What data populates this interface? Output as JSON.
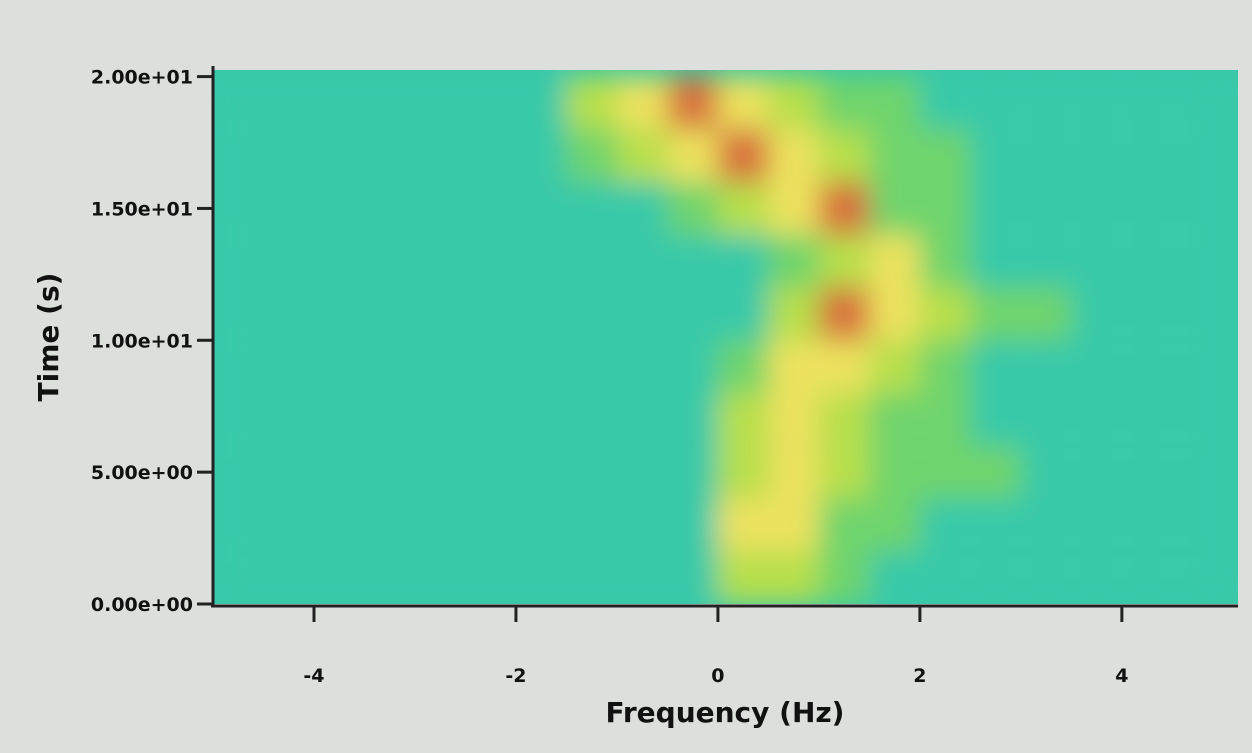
{
  "chart_data": {
    "type": "heatmap",
    "x_label": "Frequency (Hz)",
    "y_label": "Time (s)",
    "xlim": [
      -5,
      5.15
    ],
    "ylim": [
      0,
      20.25
    ],
    "xticks": [
      -4,
      -2,
      0,
      2,
      4
    ],
    "yticks": [
      {
        "value": 0,
        "label": "0.00e+00"
      },
      {
        "value": 5,
        "label": "5.00e+00"
      },
      {
        "value": 10,
        "label": "1.00e+01"
      },
      {
        "value": 15,
        "label": "1.50e+01"
      },
      {
        "value": 20,
        "label": "2.00e+01"
      }
    ],
    "xbins": [
      -5,
      -4.5,
      -4,
      -3.5,
      -3,
      -2.5,
      -2,
      -1.5,
      -1,
      -0.5,
      0,
      0.5,
      1,
      1.5,
      2,
      2.5,
      3,
      3.5,
      4,
      4.5,
      5
    ],
    "ybins": [
      0,
      2,
      4,
      6,
      8,
      10,
      12,
      14,
      16,
      18,
      20
    ],
    "colors": [
      "#38c9a9",
      "#6fd46c",
      "#b7df4c",
      "#ece25e",
      "#d8703e"
    ],
    "background": "#38c9a9",
    "z": [
      [
        0,
        0,
        0,
        0,
        0,
        0,
        0,
        0,
        0,
        0,
        2,
        2,
        1,
        0,
        0,
        0,
        0,
        0,
        0,
        0
      ],
      [
        0,
        0,
        0,
        0,
        0,
        0,
        0,
        0,
        0,
        0,
        3,
        3,
        1,
        1,
        0,
        0,
        0,
        0,
        0,
        0
      ],
      [
        0,
        0,
        0,
        0,
        0,
        0,
        0,
        0,
        0,
        0,
        2,
        3,
        2,
        1,
        1,
        1,
        0,
        0,
        0,
        0
      ],
      [
        0,
        0,
        0,
        0,
        0,
        0,
        0,
        0,
        0,
        0,
        2,
        3,
        2,
        1,
        1,
        0,
        0,
        0,
        0,
        0
      ],
      [
        0,
        0,
        0,
        0,
        0,
        0,
        0,
        0,
        0,
        0,
        1,
        3,
        3,
        2,
        1,
        0,
        0,
        0,
        0,
        0
      ],
      [
        0,
        0,
        0,
        0,
        0,
        0,
        0,
        0,
        0,
        0,
        0,
        2,
        4,
        3,
        2,
        1,
        1,
        0,
        0,
        0
      ],
      [
        0,
        0,
        0,
        0,
        0,
        0,
        0,
        0,
        0,
        0,
        0,
        1,
        2,
        3,
        1,
        0,
        0,
        0,
        0,
        0
      ],
      [
        0,
        0,
        0,
        0,
        0,
        0,
        0,
        0,
        0,
        1,
        2,
        3,
        4,
        1,
        1,
        0,
        0,
        0,
        0,
        0
      ],
      [
        0,
        0,
        0,
        0,
        0,
        0,
        0,
        1,
        2,
        3,
        4,
        3,
        2,
        1,
        1,
        0,
        0,
        0,
        0,
        0
      ],
      [
        0,
        0,
        0,
        0,
        0,
        0,
        0,
        2,
        3,
        4,
        3,
        2,
        1,
        1,
        0,
        0,
        0,
        0,
        0,
        0
      ]
    ]
  }
}
